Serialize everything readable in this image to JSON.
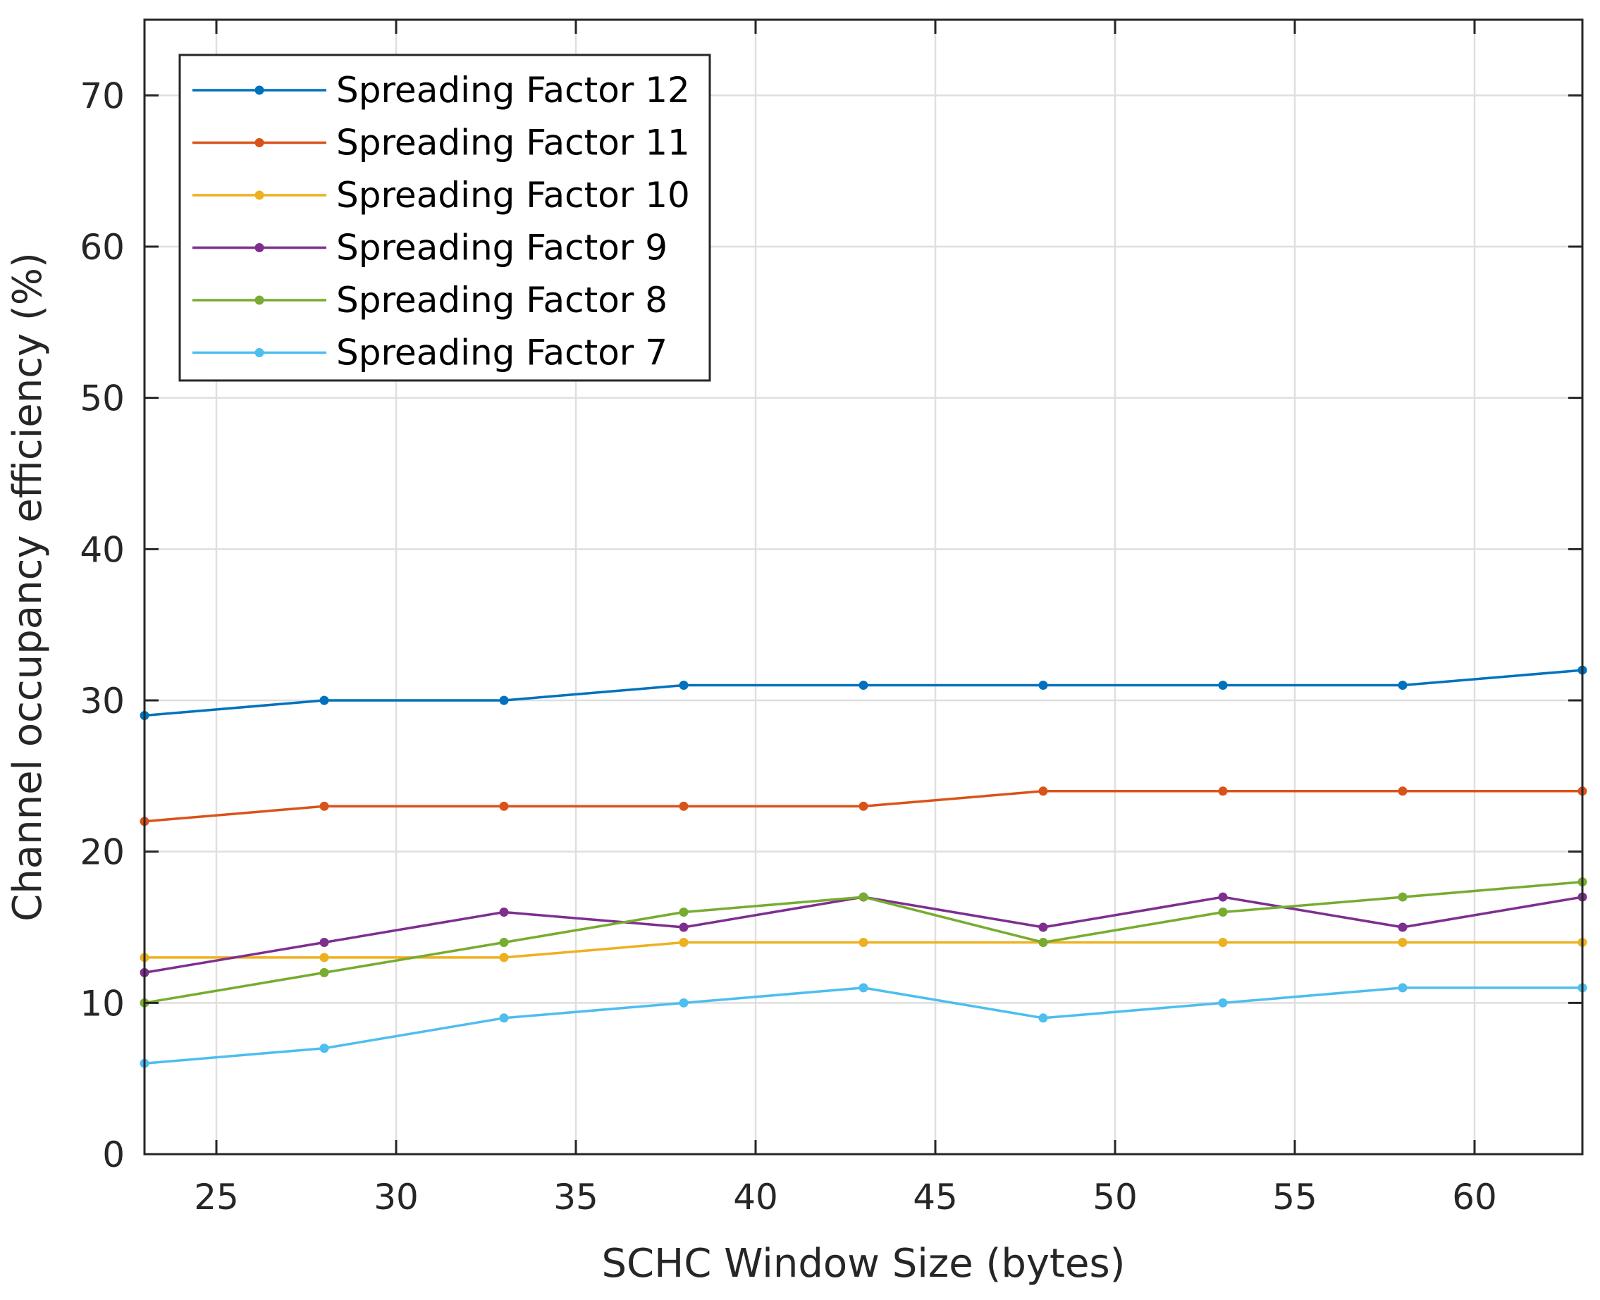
{
  "chart_data": {
    "type": "line",
    "title": "",
    "xlabel": "SCHC Window Size (bytes)",
    "ylabel": "Channel occupancy efficiency (%)",
    "xlim": [
      23,
      63
    ],
    "ylim": [
      0,
      75
    ],
    "xticks": [
      25,
      30,
      35,
      40,
      45,
      50,
      55,
      60
    ],
    "yticks": [
      0,
      10,
      20,
      30,
      40,
      50,
      60,
      70
    ],
    "grid": true,
    "legend_position": "top-left",
    "x": [
      23,
      28,
      33,
      38,
      43,
      48,
      53,
      58,
      63
    ],
    "series": [
      {
        "name": "Spreading Factor 12",
        "color": "#0072BD",
        "values": [
          29,
          30,
          30,
          31,
          31,
          31,
          31,
          31,
          32
        ]
      },
      {
        "name": "Spreading Factor 11",
        "color": "#D95319",
        "values": [
          22,
          23,
          23,
          23,
          23,
          24,
          24,
          24,
          24
        ]
      },
      {
        "name": "Spreading Factor 10",
        "color": "#EDB120",
        "values": [
          13,
          13,
          13,
          14,
          14,
          14,
          14,
          14,
          14
        ]
      },
      {
        "name": "Spreading Factor 9",
        "color": "#7E2F8E",
        "values": [
          12,
          14,
          16,
          15,
          17,
          15,
          17,
          15,
          17
        ]
      },
      {
        "name": "Spreading Factor 8",
        "color": "#77AC30",
        "values": [
          10,
          12,
          14,
          16,
          17,
          14,
          16,
          17,
          18
        ]
      },
      {
        "name": "Spreading Factor 7",
        "color": "#4DBEEE",
        "values": [
          6,
          7,
          9,
          10,
          11,
          9,
          10,
          11,
          11
        ]
      }
    ]
  }
}
